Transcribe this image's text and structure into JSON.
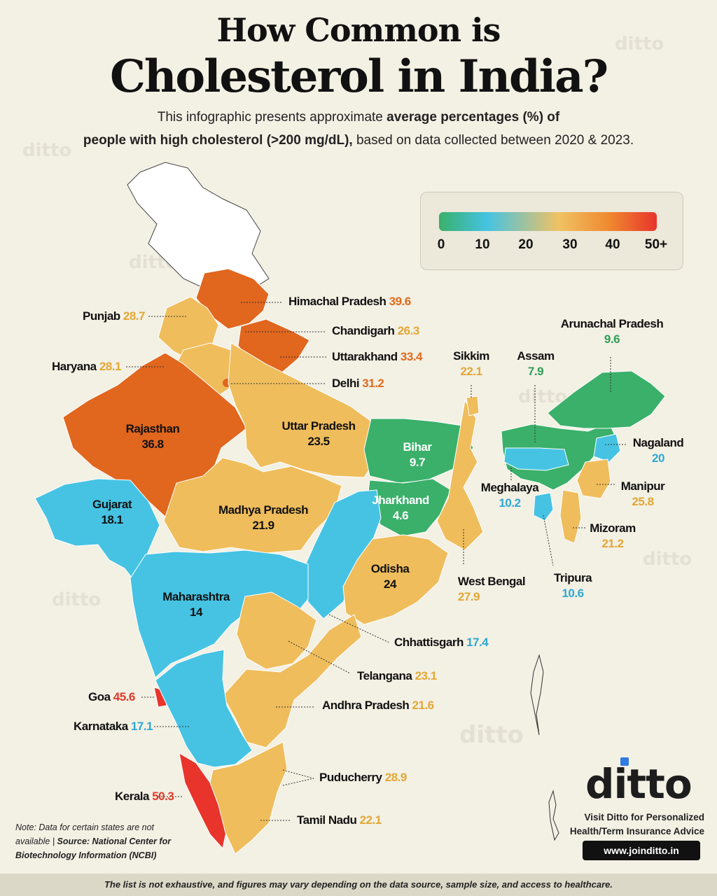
{
  "header": {
    "title_line1": "How Common is",
    "title_line2": "Cholesterol in India?",
    "subtitle_line1_pre": "This infographic presents approximate ",
    "subtitle_line1_bold": "average percentages (%) of",
    "subtitle_line2_bold": "people with high cholesterol (>200 mg/dL),",
    "subtitle_line2_post": " based on data collected between 2020 & 2023."
  },
  "watermark": "ditto",
  "legend": {
    "colors": [
      "#3ab06a",
      "#45c3e2",
      "#f0c264",
      "#ef8a30",
      "#e8342b"
    ],
    "ticks": [
      "0",
      "10",
      "20",
      "30",
      "40",
      "50+"
    ]
  },
  "states": {
    "himachal": {
      "name": "Himachal Pradesh",
      "value": "39.6"
    },
    "punjab": {
      "name": "Punjab",
      "value": "28.7"
    },
    "chandigarh": {
      "name": "Chandigarh",
      "value": "26.3"
    },
    "uttarakhand": {
      "name": "Uttarakhand",
      "value": "33.4"
    },
    "haryana": {
      "name": "Haryana",
      "value": "28.1"
    },
    "delhi": {
      "name": "Delhi",
      "value": "31.2"
    },
    "rajasthan": {
      "name": "Rajasthan",
      "value": "36.8"
    },
    "uttar_pradesh": {
      "name": "Uttar Pradesh",
      "value": "23.5"
    },
    "gujarat": {
      "name": "Gujarat",
      "value": "18.1"
    },
    "madhya_pradesh": {
      "name": "Madhya Pradesh",
      "value": "21.9"
    },
    "bihar": {
      "name": "Bihar",
      "value": "9.7"
    },
    "jharkhand": {
      "name": "Jharkhand",
      "value": "4.6"
    },
    "odisha": {
      "name": "Odisha",
      "value": "24"
    },
    "maharashtra": {
      "name": "Maharashtra",
      "value": "14"
    },
    "west_bengal": {
      "name": "West Bengal",
      "value": "27.9"
    },
    "chhattisgarh": {
      "name": "Chhattisgarh",
      "value": "17.4"
    },
    "telangana": {
      "name": "Telangana",
      "value": "23.1"
    },
    "goa": {
      "name": "Goa",
      "value": "45.6"
    },
    "andhra_pradesh": {
      "name": "Andhra Pradesh",
      "value": "21.6"
    },
    "karnataka": {
      "name": "Karnataka",
      "value": "17.1"
    },
    "puducherry": {
      "name": "Puducherry",
      "value": "28.9"
    },
    "kerala": {
      "name": "Kerala",
      "value": "50.3"
    },
    "tamil_nadu": {
      "name": "Tamil Nadu",
      "value": "22.1"
    },
    "sikkim": {
      "name": "Sikkim",
      "value": "22.1"
    },
    "assam": {
      "name": "Assam",
      "value": "7.9"
    },
    "arunachal": {
      "name": "Arunachal Pradesh",
      "value": "9.6"
    },
    "nagaland": {
      "name": "Nagaland",
      "value": "20"
    },
    "meghalaya": {
      "name": "Meghalaya",
      "value": "10.2"
    },
    "manipur": {
      "name": "Manipur",
      "value": "25.8"
    },
    "mizoram": {
      "name": "Mizoram",
      "value": "21.2"
    },
    "tripura": {
      "name": "Tripura",
      "value": "10.6"
    }
  },
  "note": {
    "text": "Note: Data for certain states are not available | ",
    "source": "Source: National Center for Biotechnology Information (NCBI)"
  },
  "brand": {
    "logo": "ditto",
    "promo_line1": "Visit Ditto for Personalized",
    "promo_line2": "Health/Term Insurance Advice",
    "url": "www.joinditto.in"
  },
  "footer": "The list is not exhaustive, and figures may vary depending on the data source, sample size, and access to healthcare."
}
